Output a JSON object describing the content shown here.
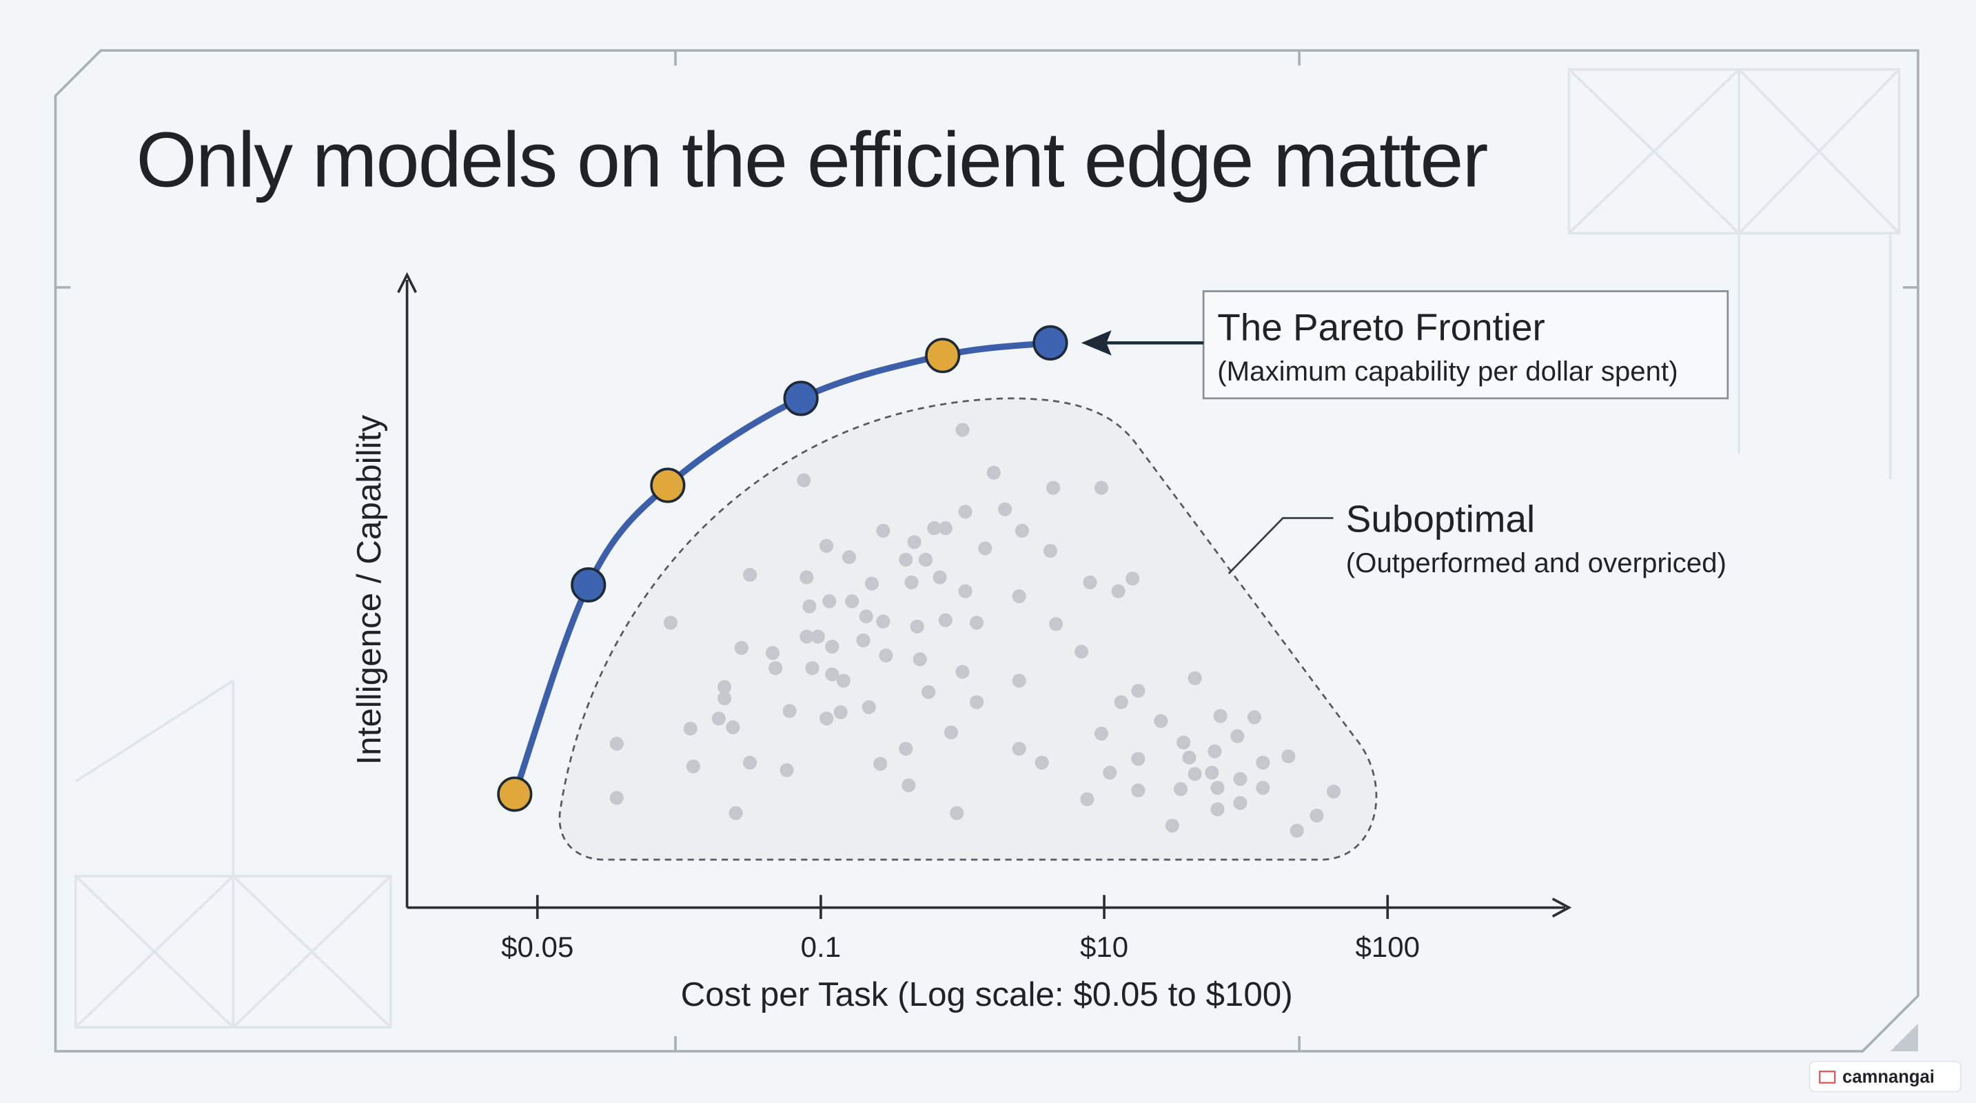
{
  "chart_data": {
    "type": "scatter",
    "title": "Only models on the efficient edge matter",
    "x_label": "Cost per Task (Log scale: $0.05 to $100)",
    "y_label": "Intelligence / Capability",
    "xticks": [
      "$0.05",
      "0.1",
      "$10",
      "$100"
    ],
    "xlim": [
      -0.46,
      3.64
    ],
    "ylim": [
      0,
      100
    ],
    "annotations": {
      "frontier_title": "The Pareto Frontier",
      "frontier_subtitle": "(Maximum capability per dollar spent)",
      "suboptimal_title": "Suboptimal",
      "suboptimal_subtitle": "(Outperformed and overpriced)"
    },
    "watermark": "camnangai",
    "frontier": {
      "line_color": "#3d5ea8",
      "colors": [
        "#e0a83a",
        "#3d64b0",
        "#e0a83a",
        "#3d64b0",
        "#e0a83a",
        "#3d64b0"
      ],
      "x": [
        -0.08,
        0.18,
        0.46,
        0.93,
        1.43,
        1.81
      ],
      "values": [
        18,
        51.2,
        67,
        80.8,
        87.6,
        89.6
      ]
    },
    "suboptimal": {
      "color": "#c4c7cb",
      "x": [
        1.5,
        0.94,
        1.61,
        1.82,
        1.99,
        1.22,
        1.33,
        1.4,
        1.44,
        1.51,
        1.65,
        1.71,
        1.02,
        1.1,
        1.3,
        1.37,
        1.58,
        1.81,
        0.75,
        0.95,
        1.18,
        1.32,
        1.42,
        1.51,
        1.7,
        1.95,
        2.05,
        2.1,
        0.47,
        0.96,
        1.03,
        1.11,
        1.16,
        1.22,
        1.34,
        1.44,
        1.55,
        1.83,
        0.83,
        0.95,
        0.99,
        1.04,
        1.15,
        1.23,
        1.35,
        1.92,
        0.72,
        0.66,
        0.84,
        0.97,
        1.04,
        1.08,
        1.38,
        1.5,
        1.7,
        0.66,
        0.89,
        1.02,
        1.07,
        1.17,
        1.55,
        2.06,
        2.12,
        2.32,
        0.64,
        0.69,
        0.54,
        1.46,
        1.99,
        2.2,
        2.41,
        2.53,
        0.28,
        1.3,
        1.7,
        2.28,
        2.39,
        2.47,
        0.75,
        0.88,
        0.55,
        1.21,
        1.78,
        2.02,
        2.12,
        2.3,
        2.56,
        2.65,
        2.32,
        2.38,
        2.48,
        0.28,
        0.7,
        1.31,
        1.48,
        1.94,
        2.12,
        2.27,
        2.4,
        2.56,
        2.81,
        2.4,
        2.48,
        2.24,
        2.75,
        2.68
      ],
      "values": [
        75.8,
        67.8,
        69,
        66.6,
        66.6,
        59.8,
        58,
        60.2,
        60.2,
        62.8,
        63.2,
        59.8,
        57.4,
        55.6,
        55.2,
        55.2,
        57,
        56.6,
        52.8,
        52.4,
        51.4,
        51.6,
        52.4,
        50.2,
        49.4,
        51.6,
        50.2,
        52.2,
        45.2,
        47.8,
        48.6,
        48.6,
        46.2,
        45.4,
        44.6,
        45.6,
        45.2,
        45,
        40.4,
        43,
        43,
        41.4,
        42.4,
        40,
        39.4,
        40.6,
        41.2,
        35,
        38,
        38,
        37,
        36,
        34.2,
        37.4,
        36,
        33.2,
        31.2,
        30,
        31,
        31.8,
        32.6,
        32.6,
        34.4,
        36.4,
        30,
        28.6,
        28.4,
        27.8,
        27.6,
        29.6,
        30.4,
        30.2,
        26,
        25.2,
        25.2,
        26.2,
        24.8,
        27.2,
        23,
        21.8,
        22.4,
        22.8,
        23,
        21.4,
        23.6,
        23.8,
        23,
        24,
        21.2,
        21.4,
        20.4,
        17.4,
        15,
        19.4,
        15,
        17.2,
        18.6,
        18.8,
        19,
        19,
        18.4,
        15.6,
        16.6,
        13,
        14.6,
        12.2
      ]
    }
  }
}
